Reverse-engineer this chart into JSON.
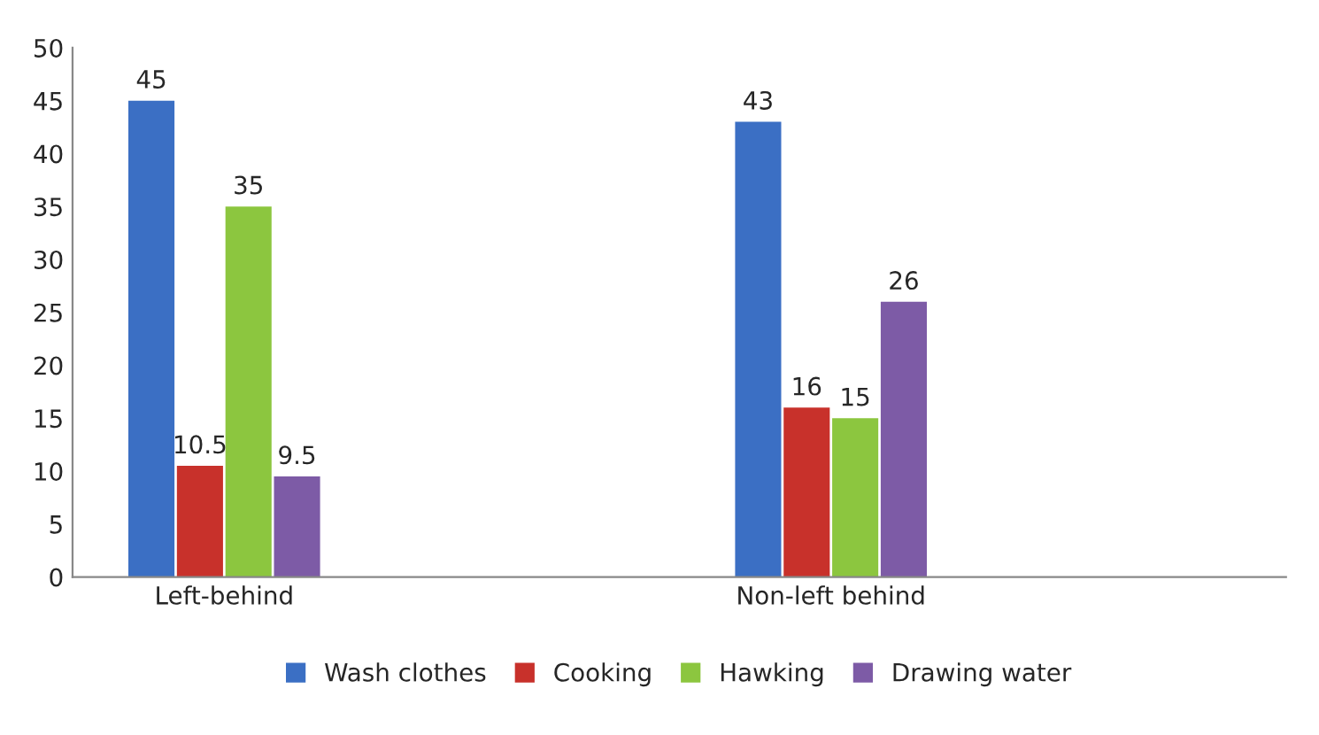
{
  "chart_data": {
    "type": "bar",
    "categories": [
      "Left-behind",
      "Non-left behind"
    ],
    "series": [
      {
        "name": "Wash clothes",
        "color": "#3b6fc4",
        "values": [
          45,
          43
        ]
      },
      {
        "name": "Cooking",
        "color": "#c8312b",
        "values": [
          10.5,
          16
        ]
      },
      {
        "name": "Hawking",
        "color": "#8cc63f",
        "values": [
          35,
          15
        ]
      },
      {
        "name": "Drawing water",
        "color": "#7d5ba6",
        "values": [
          9.5,
          26
        ]
      }
    ],
    "ylim": [
      0,
      50
    ],
    "yticks": [
      0,
      5,
      10,
      15,
      20,
      25,
      30,
      35,
      40,
      45,
      50
    ],
    "grid": false,
    "legend": "bottom",
    "data_labels": true
  }
}
